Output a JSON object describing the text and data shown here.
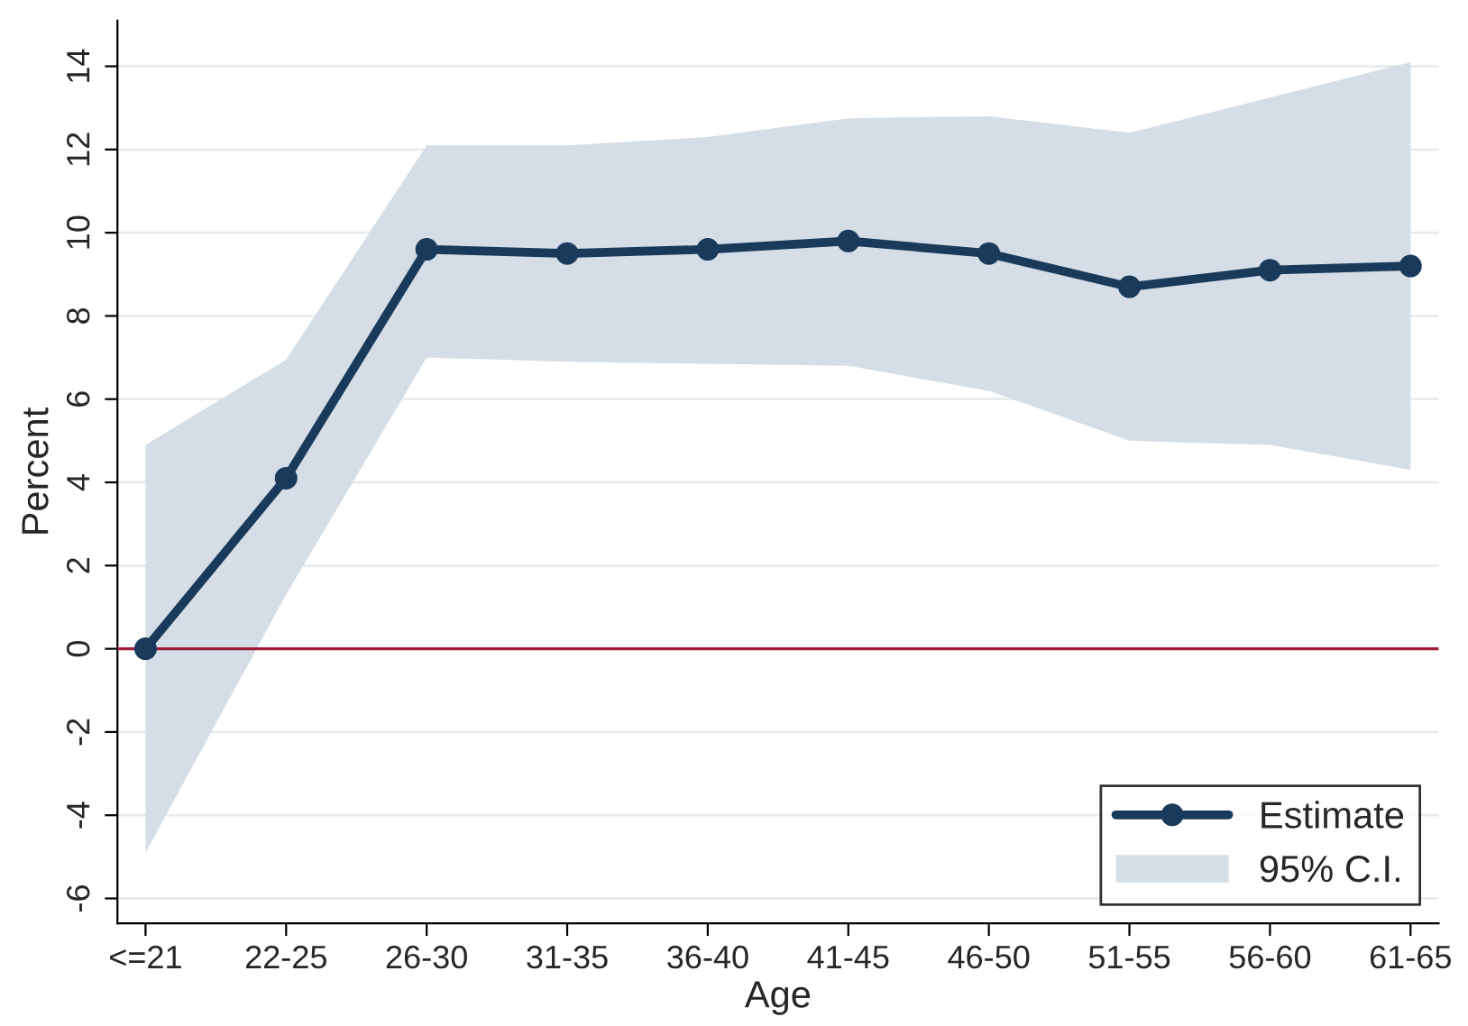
{
  "chart_data": {
    "type": "line",
    "xlabel": "Age",
    "ylabel": "Percent",
    "categories": [
      "<=21",
      "22-25",
      "26-30",
      "31-35",
      "36-40",
      "41-45",
      "46-50",
      "51-55",
      "56-60",
      "61-65"
    ],
    "series": [
      {
        "name": "Estimate",
        "color": "#1a3a5c",
        "values": [
          0,
          4.1,
          9.6,
          9.5,
          9.6,
          9.8,
          9.5,
          8.7,
          9.1,
          9.2
        ],
        "lower": [
          -4.9,
          1.3,
          7.0,
          6.9,
          6.85,
          6.8,
          6.2,
          5.0,
          4.9,
          4.3
        ],
        "upper": [
          4.9,
          6.95,
          12.1,
          12.1,
          12.3,
          12.75,
          12.8,
          12.4,
          13.25,
          14.1
        ]
      }
    ],
    "ylim": [
      -6.6,
      15.1
    ],
    "yticks": [
      -6,
      -4,
      -2,
      0,
      2,
      4,
      6,
      8,
      10,
      12,
      14
    ],
    "ref_lines": [
      {
        "axis": "y",
        "value": 0,
        "color": "#9e1b3a"
      }
    ],
    "annotations": [
      "95% C.I."
    ],
    "grid": "y",
    "legend": "bottom right",
    "marker": "circle",
    "line_style": "solid"
  }
}
